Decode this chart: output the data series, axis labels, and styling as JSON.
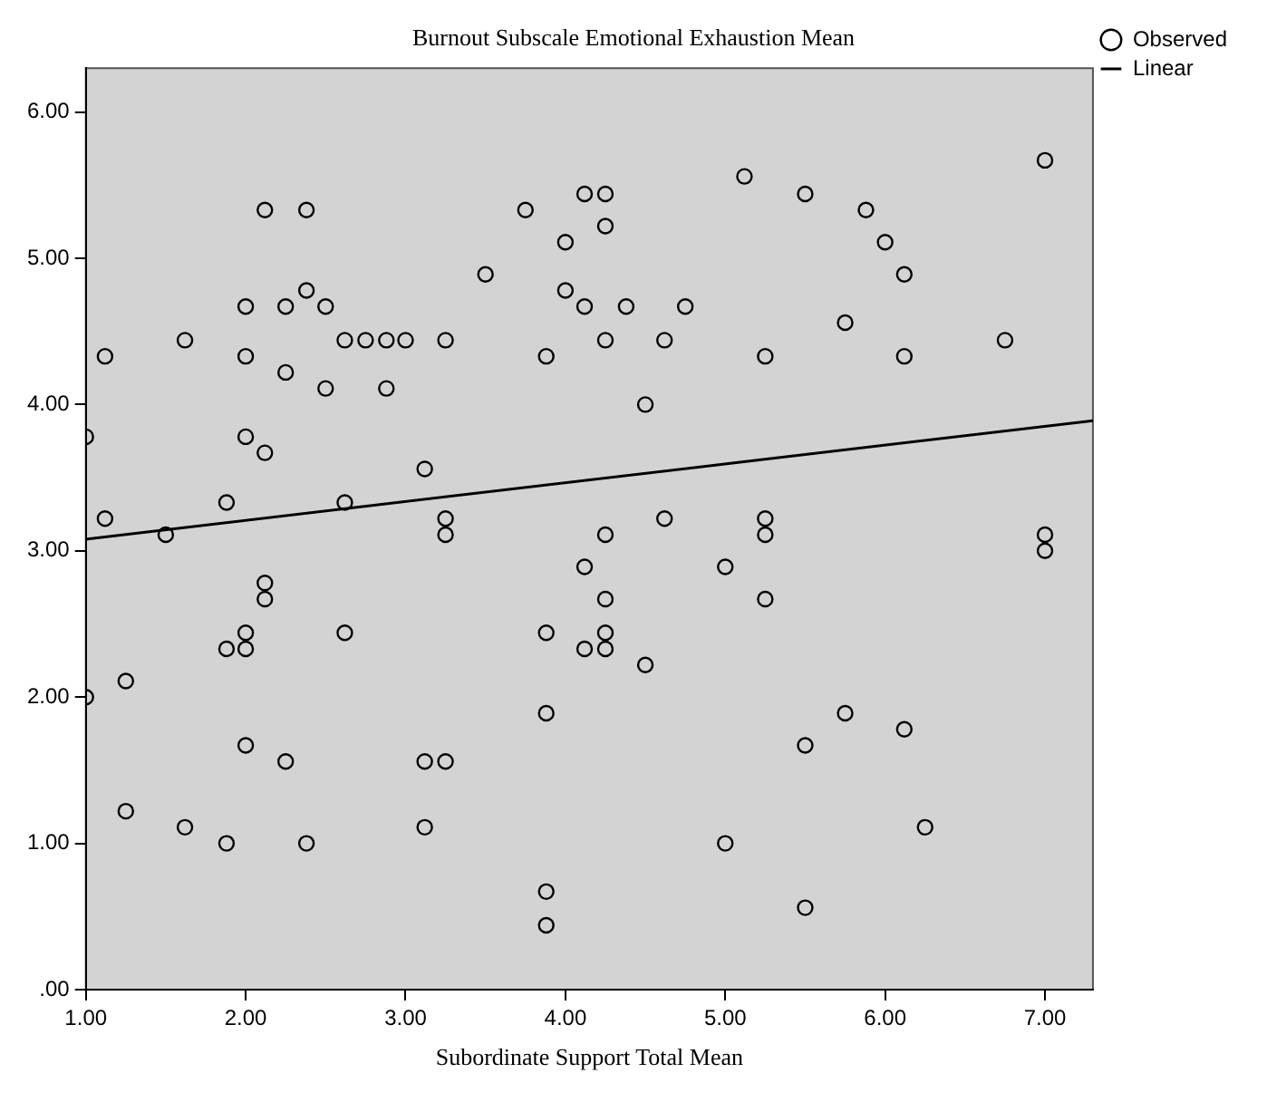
{
  "chart_data": {
    "type": "scatter",
    "title": "Burnout Subscale Emotional Exhaustion Mean",
    "xlabel": "Subordinate Support Total Mean",
    "grid": false,
    "legend": "top right",
    "xlim": [
      1,
      7.3
    ],
    "ylim": [
      0,
      6.3
    ],
    "xticks": [
      {
        "value": 1,
        "label": "1.00"
      },
      {
        "value": 2,
        "label": "2.00"
      },
      {
        "value": 3,
        "label": "3.00"
      },
      {
        "value": 4,
        "label": "4.00"
      },
      {
        "value": 5,
        "label": "5.00"
      },
      {
        "value": 6,
        "label": "6.00"
      },
      {
        "value": 7,
        "label": "7.00"
      }
    ],
    "yticks": [
      {
        "value": 0,
        "label": ".00"
      },
      {
        "value": 1,
        "label": "1.00"
      },
      {
        "value": 2,
        "label": "2.00"
      },
      {
        "value": 3,
        "label": "3.00"
      },
      {
        "value": 4,
        "label": "4.00"
      },
      {
        "value": 5,
        "label": "5.00"
      },
      {
        "value": 6,
        "label": "6.00"
      }
    ],
    "series": [
      {
        "name": "Observed",
        "type": "scatter",
        "marker": "circle",
        "color": "#000000",
        "x": [
          1,
          1,
          1.12,
          1.12,
          1.25,
          1.25,
          1.5,
          1.62,
          1.62,
          1.88,
          1.88,
          1.88,
          2,
          2,
          2,
          2,
          2,
          2,
          2.12,
          2.12,
          2.12,
          2.12,
          2.25,
          2.25,
          2.25,
          2.38,
          2.38,
          2.38,
          2.5,
          2.5,
          2.62,
          2.62,
          2.62,
          2.75,
          2.88,
          2.88,
          3,
          3.12,
          3.12,
          3.12,
          3.25,
          3.25,
          3.25,
          3.25,
          3.5,
          3.75,
          3.88,
          3.88,
          3.88,
          3.88,
          3.88,
          4,
          4,
          4.12,
          4.12,
          4.12,
          4.12,
          4.25,
          4.25,
          4.25,
          4.25,
          4.25,
          4.25,
          4.25,
          4.38,
          4.5,
          4.5,
          4.62,
          4.62,
          4.75,
          5,
          5,
          5.12,
          5.25,
          5.25,
          5.25,
          5.25,
          5.5,
          5.5,
          5.5,
          5.75,
          5.75,
          5.88,
          6,
          6.12,
          6.12,
          6.12,
          6.25,
          6.75,
          7,
          7,
          7
        ],
        "values": [
          3.78,
          2,
          4.33,
          3.22,
          2.11,
          1.22,
          3.11,
          4.44,
          1.11,
          3.33,
          2.33,
          1,
          4.67,
          4.33,
          3.78,
          2.44,
          2.33,
          1.67,
          5.33,
          3.67,
          2.78,
          2.67,
          4.67,
          4.22,
          1.56,
          5.33,
          4.78,
          1,
          4.67,
          4.11,
          4.44,
          3.33,
          2.44,
          4.44,
          4.44,
          4.11,
          4.44,
          3.56,
          1.56,
          1.11,
          4.44,
          3.22,
          3.11,
          1.56,
          4.89,
          5.33,
          4.33,
          2.44,
          1.89,
          0.67,
          0.44,
          5.11,
          4.78,
          5.44,
          4.67,
          2.89,
          2.33,
          5.44,
          5.22,
          4.44,
          3.11,
          2.67,
          2.44,
          2.33,
          4.67,
          4,
          2.22,
          4.44,
          3.22,
          4.67,
          2.89,
          1,
          5.56,
          4.33,
          3.22,
          3.11,
          2.67,
          5.44,
          1.67,
          0.56,
          4.56,
          1.89,
          5.33,
          5.11,
          4.89,
          4.33,
          1.78,
          1.11,
          4.44,
          5.67,
          3.11,
          3
        ]
      },
      {
        "name": "Linear",
        "type": "line",
        "marker": "none",
        "color": "#000000",
        "x": [
          1,
          7.3
        ],
        "values": [
          3.08,
          3.89
        ]
      }
    ]
  }
}
